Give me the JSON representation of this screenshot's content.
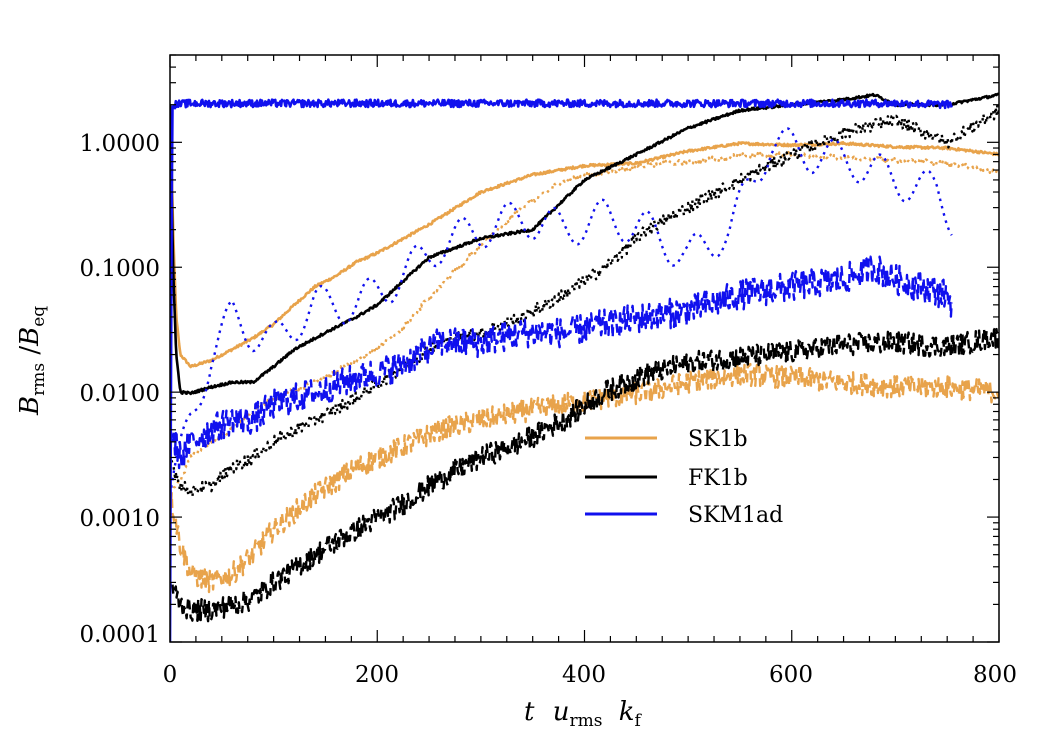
{
  "chart_data": {
    "type": "line",
    "title": "",
    "x_scale": "linear",
    "y_scale": "log",
    "xlim": [
      0,
      800
    ],
    "ylim": [
      0.0001,
      5
    ],
    "grid": false,
    "xlabel": {
      "main": "t",
      "u": "u",
      "u_sub": "rms",
      "k": "k",
      "k_sub": "f"
    },
    "ylabel": {
      "B1": "B",
      "B1_sub": "rms",
      "slash": "/",
      "B2": "B",
      "B2_sub": "eq"
    },
    "x_ticks": [
      {
        "value": 0,
        "label": "0"
      },
      {
        "value": 200,
        "label": "200"
      },
      {
        "value": 400,
        "label": "400"
      },
      {
        "value": 600,
        "label": "600"
      },
      {
        "value": 800,
        "label": "800"
      }
    ],
    "y_ticks": [
      {
        "value": 0.0001,
        "label": "0.0001"
      },
      {
        "value": 0.001,
        "label": "0.0010"
      },
      {
        "value": 0.01,
        "label": "0.0100"
      },
      {
        "value": 0.1,
        "label": "0.1000"
      },
      {
        "value": 1.0,
        "label": "1.0000"
      }
    ],
    "legend": {
      "position": "center-right",
      "entries": [
        {
          "label": "SK1b",
          "color": "#E8A34B"
        },
        {
          "label": "FK1b",
          "color": "#000000"
        },
        {
          "label": "SKM1ad",
          "color": "#1010EE"
        }
      ]
    },
    "series": [
      {
        "name": "SK1b (solid)",
        "color": "#E8A34B",
        "style": "solid",
        "noise": 0.01,
        "points": [
          [
            0,
            2.0
          ],
          [
            3,
            0.2
          ],
          [
            6,
            0.04
          ],
          [
            10,
            0.02
          ],
          [
            20,
            0.016
          ],
          [
            40,
            0.018
          ],
          [
            60,
            0.022
          ],
          [
            80,
            0.027
          ],
          [
            100,
            0.035
          ],
          [
            120,
            0.05
          ],
          [
            140,
            0.07
          ],
          [
            160,
            0.085
          ],
          [
            180,
            0.11
          ],
          [
            200,
            0.13
          ],
          [
            250,
            0.22
          ],
          [
            300,
            0.4
          ],
          [
            350,
            0.55
          ],
          [
            400,
            0.65
          ],
          [
            450,
            0.68
          ],
          [
            500,
            0.85
          ],
          [
            550,
            0.98
          ],
          [
            600,
            0.95
          ],
          [
            650,
            0.98
          ],
          [
            700,
            0.92
          ],
          [
            750,
            0.9
          ],
          [
            800,
            0.8
          ]
        ]
      },
      {
        "name": "SK1b (dotted)",
        "color": "#E8A34B",
        "style": "dotted",
        "noise": 0.02,
        "points": [
          [
            0,
            0.0015
          ],
          [
            10,
            0.002
          ],
          [
            20,
            0.003
          ],
          [
            40,
            0.004
          ],
          [
            60,
            0.005
          ],
          [
            80,
            0.007
          ],
          [
            100,
            0.009
          ],
          [
            140,
            0.012
          ],
          [
            180,
            0.018
          ],
          [
            220,
            0.03
          ],
          [
            260,
            0.07
          ],
          [
            300,
            0.15
          ],
          [
            340,
            0.3
          ],
          [
            380,
            0.5
          ],
          [
            420,
            0.58
          ],
          [
            460,
            0.66
          ],
          [
            500,
            0.7
          ],
          [
            550,
            0.78
          ],
          [
            600,
            0.8
          ],
          [
            650,
            0.75
          ],
          [
            700,
            0.72
          ],
          [
            750,
            0.68
          ],
          [
            800,
            0.58
          ]
        ]
      },
      {
        "name": "SK1b (dashed)",
        "color": "#E8A34B",
        "style": "dashed",
        "noise": 0.09,
        "points": [
          [
            0,
            0.0015
          ],
          [
            5,
            0.001
          ],
          [
            10,
            0.0006
          ],
          [
            20,
            0.00035
          ],
          [
            40,
            0.0003
          ],
          [
            60,
            0.00035
          ],
          [
            80,
            0.0005
          ],
          [
            100,
            0.0008
          ],
          [
            140,
            0.0015
          ],
          [
            180,
            0.0025
          ],
          [
            220,
            0.0035
          ],
          [
            260,
            0.005
          ],
          [
            300,
            0.006
          ],
          [
            340,
            0.007
          ],
          [
            380,
            0.008
          ],
          [
            420,
            0.009
          ],
          [
            460,
            0.01
          ],
          [
            500,
            0.012
          ],
          [
            550,
            0.014
          ],
          [
            600,
            0.013
          ],
          [
            650,
            0.012
          ],
          [
            700,
            0.011
          ],
          [
            750,
            0.011
          ],
          [
            800,
            0.01
          ]
        ]
      },
      {
        "name": "FK1b (solid)",
        "color": "#000000",
        "style": "solid",
        "noise": 0.01,
        "points": [
          [
            0,
            2.0
          ],
          [
            3,
            0.1
          ],
          [
            6,
            0.02
          ],
          [
            10,
            0.01
          ],
          [
            20,
            0.0098
          ],
          [
            40,
            0.011
          ],
          [
            60,
            0.012
          ],
          [
            80,
            0.012
          ],
          [
            100,
            0.016
          ],
          [
            120,
            0.022
          ],
          [
            150,
            0.03
          ],
          [
            180,
            0.04
          ],
          [
            200,
            0.05
          ],
          [
            250,
            0.12
          ],
          [
            300,
            0.17
          ],
          [
            350,
            0.2
          ],
          [
            400,
            0.5
          ],
          [
            450,
            0.8
          ],
          [
            500,
            1.3
          ],
          [
            550,
            1.8
          ],
          [
            600,
            2.0
          ],
          [
            650,
            2.2
          ],
          [
            680,
            2.4
          ],
          [
            700,
            2.0
          ],
          [
            750,
            2.0
          ],
          [
            800,
            2.4
          ]
        ]
      },
      {
        "name": "FK1b (dotted)",
        "color": "#000000",
        "style": "dotted",
        "noise": 0.05,
        "points": [
          [
            0,
            0.003
          ],
          [
            10,
            0.0018
          ],
          [
            20,
            0.0016
          ],
          [
            40,
            0.0018
          ],
          [
            60,
            0.0025
          ],
          [
            80,
            0.003
          ],
          [
            100,
            0.004
          ],
          [
            140,
            0.006
          ],
          [
            180,
            0.009
          ],
          [
            220,
            0.015
          ],
          [
            260,
            0.025
          ],
          [
            300,
            0.03
          ],
          [
            340,
            0.04
          ],
          [
            380,
            0.06
          ],
          [
            420,
            0.1
          ],
          [
            460,
            0.2
          ],
          [
            500,
            0.3
          ],
          [
            550,
            0.5
          ],
          [
            600,
            0.8
          ],
          [
            650,
            1.2
          ],
          [
            700,
            1.5
          ],
          [
            750,
            1.0
          ],
          [
            800,
            1.8
          ]
        ]
      },
      {
        "name": "FK1b (dashed)",
        "color": "#000000",
        "style": "dashed",
        "noise": 0.09,
        "points": [
          [
            0,
            0.0003
          ],
          [
            10,
            0.0002
          ],
          [
            20,
            0.00018
          ],
          [
            40,
            0.00018
          ],
          [
            60,
            0.0002
          ],
          [
            80,
            0.00022
          ],
          [
            100,
            0.0003
          ],
          [
            140,
            0.0005
          ],
          [
            180,
            0.0008
          ],
          [
            220,
            0.0012
          ],
          [
            260,
            0.002
          ],
          [
            300,
            0.003
          ],
          [
            340,
            0.004
          ],
          [
            380,
            0.006
          ],
          [
            420,
            0.01
          ],
          [
            460,
            0.014
          ],
          [
            500,
            0.017
          ],
          [
            550,
            0.019
          ],
          [
            600,
            0.021
          ],
          [
            650,
            0.024
          ],
          [
            700,
            0.025
          ],
          [
            750,
            0.023
          ],
          [
            800,
            0.028
          ]
        ]
      },
      {
        "name": "SKM1ad (solid)",
        "color": "#1010EE",
        "style": "solid",
        "noise": 0.03,
        "points": [
          [
            0,
            0.0001
          ],
          [
            2,
            2.0
          ],
          [
            20,
            2.05
          ],
          [
            100,
            2.05
          ],
          [
            200,
            2.05
          ],
          [
            300,
            2.05
          ],
          [
            400,
            2.05
          ],
          [
            500,
            2.05
          ],
          [
            600,
            2.05
          ],
          [
            700,
            2.05
          ],
          [
            755,
            2.0
          ]
        ]
      },
      {
        "name": "SKM1ad (dotted)",
        "color": "#1010EE",
        "style": "dotted",
        "noise": 0.0,
        "oscillate": [
          0.3,
          45
        ],
        "points": [
          [
            0,
            0.0015
          ],
          [
            10,
            0.003
          ],
          [
            20,
            0.006
          ],
          [
            40,
            0.02
          ],
          [
            60,
            0.04
          ],
          [
            80,
            0.03
          ],
          [
            100,
            0.025
          ],
          [
            140,
            0.05
          ],
          [
            180,
            0.05
          ],
          [
            220,
            0.08
          ],
          [
            260,
            0.15
          ],
          [
            300,
            0.2
          ],
          [
            340,
            0.25
          ],
          [
            380,
            0.2
          ],
          [
            420,
            0.25
          ],
          [
            460,
            0.2
          ],
          [
            500,
            0.12
          ],
          [
            540,
            0.2
          ],
          [
            580,
            1.0
          ],
          [
            620,
            0.8
          ],
          [
            660,
            0.7
          ],
          [
            700,
            0.5
          ],
          [
            740,
            0.4
          ],
          [
            755,
            0.25
          ]
        ]
      },
      {
        "name": "SKM1ad (dashed)",
        "color": "#1010EE",
        "style": "dashed",
        "noise": 0.12,
        "points": [
          [
            0,
            0.005
          ],
          [
            10,
            0.003
          ],
          [
            20,
            0.004
          ],
          [
            40,
            0.005
          ],
          [
            60,
            0.006
          ],
          [
            80,
            0.006
          ],
          [
            100,
            0.008
          ],
          [
            140,
            0.01
          ],
          [
            180,
            0.013
          ],
          [
            220,
            0.016
          ],
          [
            260,
            0.025
          ],
          [
            300,
            0.025
          ],
          [
            340,
            0.03
          ],
          [
            380,
            0.03
          ],
          [
            420,
            0.035
          ],
          [
            460,
            0.04
          ],
          [
            500,
            0.045
          ],
          [
            550,
            0.06
          ],
          [
            600,
            0.07
          ],
          [
            650,
            0.08
          ],
          [
            680,
            0.1
          ],
          [
            700,
            0.08
          ],
          [
            750,
            0.06
          ],
          [
            755,
            0.05
          ]
        ]
      }
    ]
  }
}
